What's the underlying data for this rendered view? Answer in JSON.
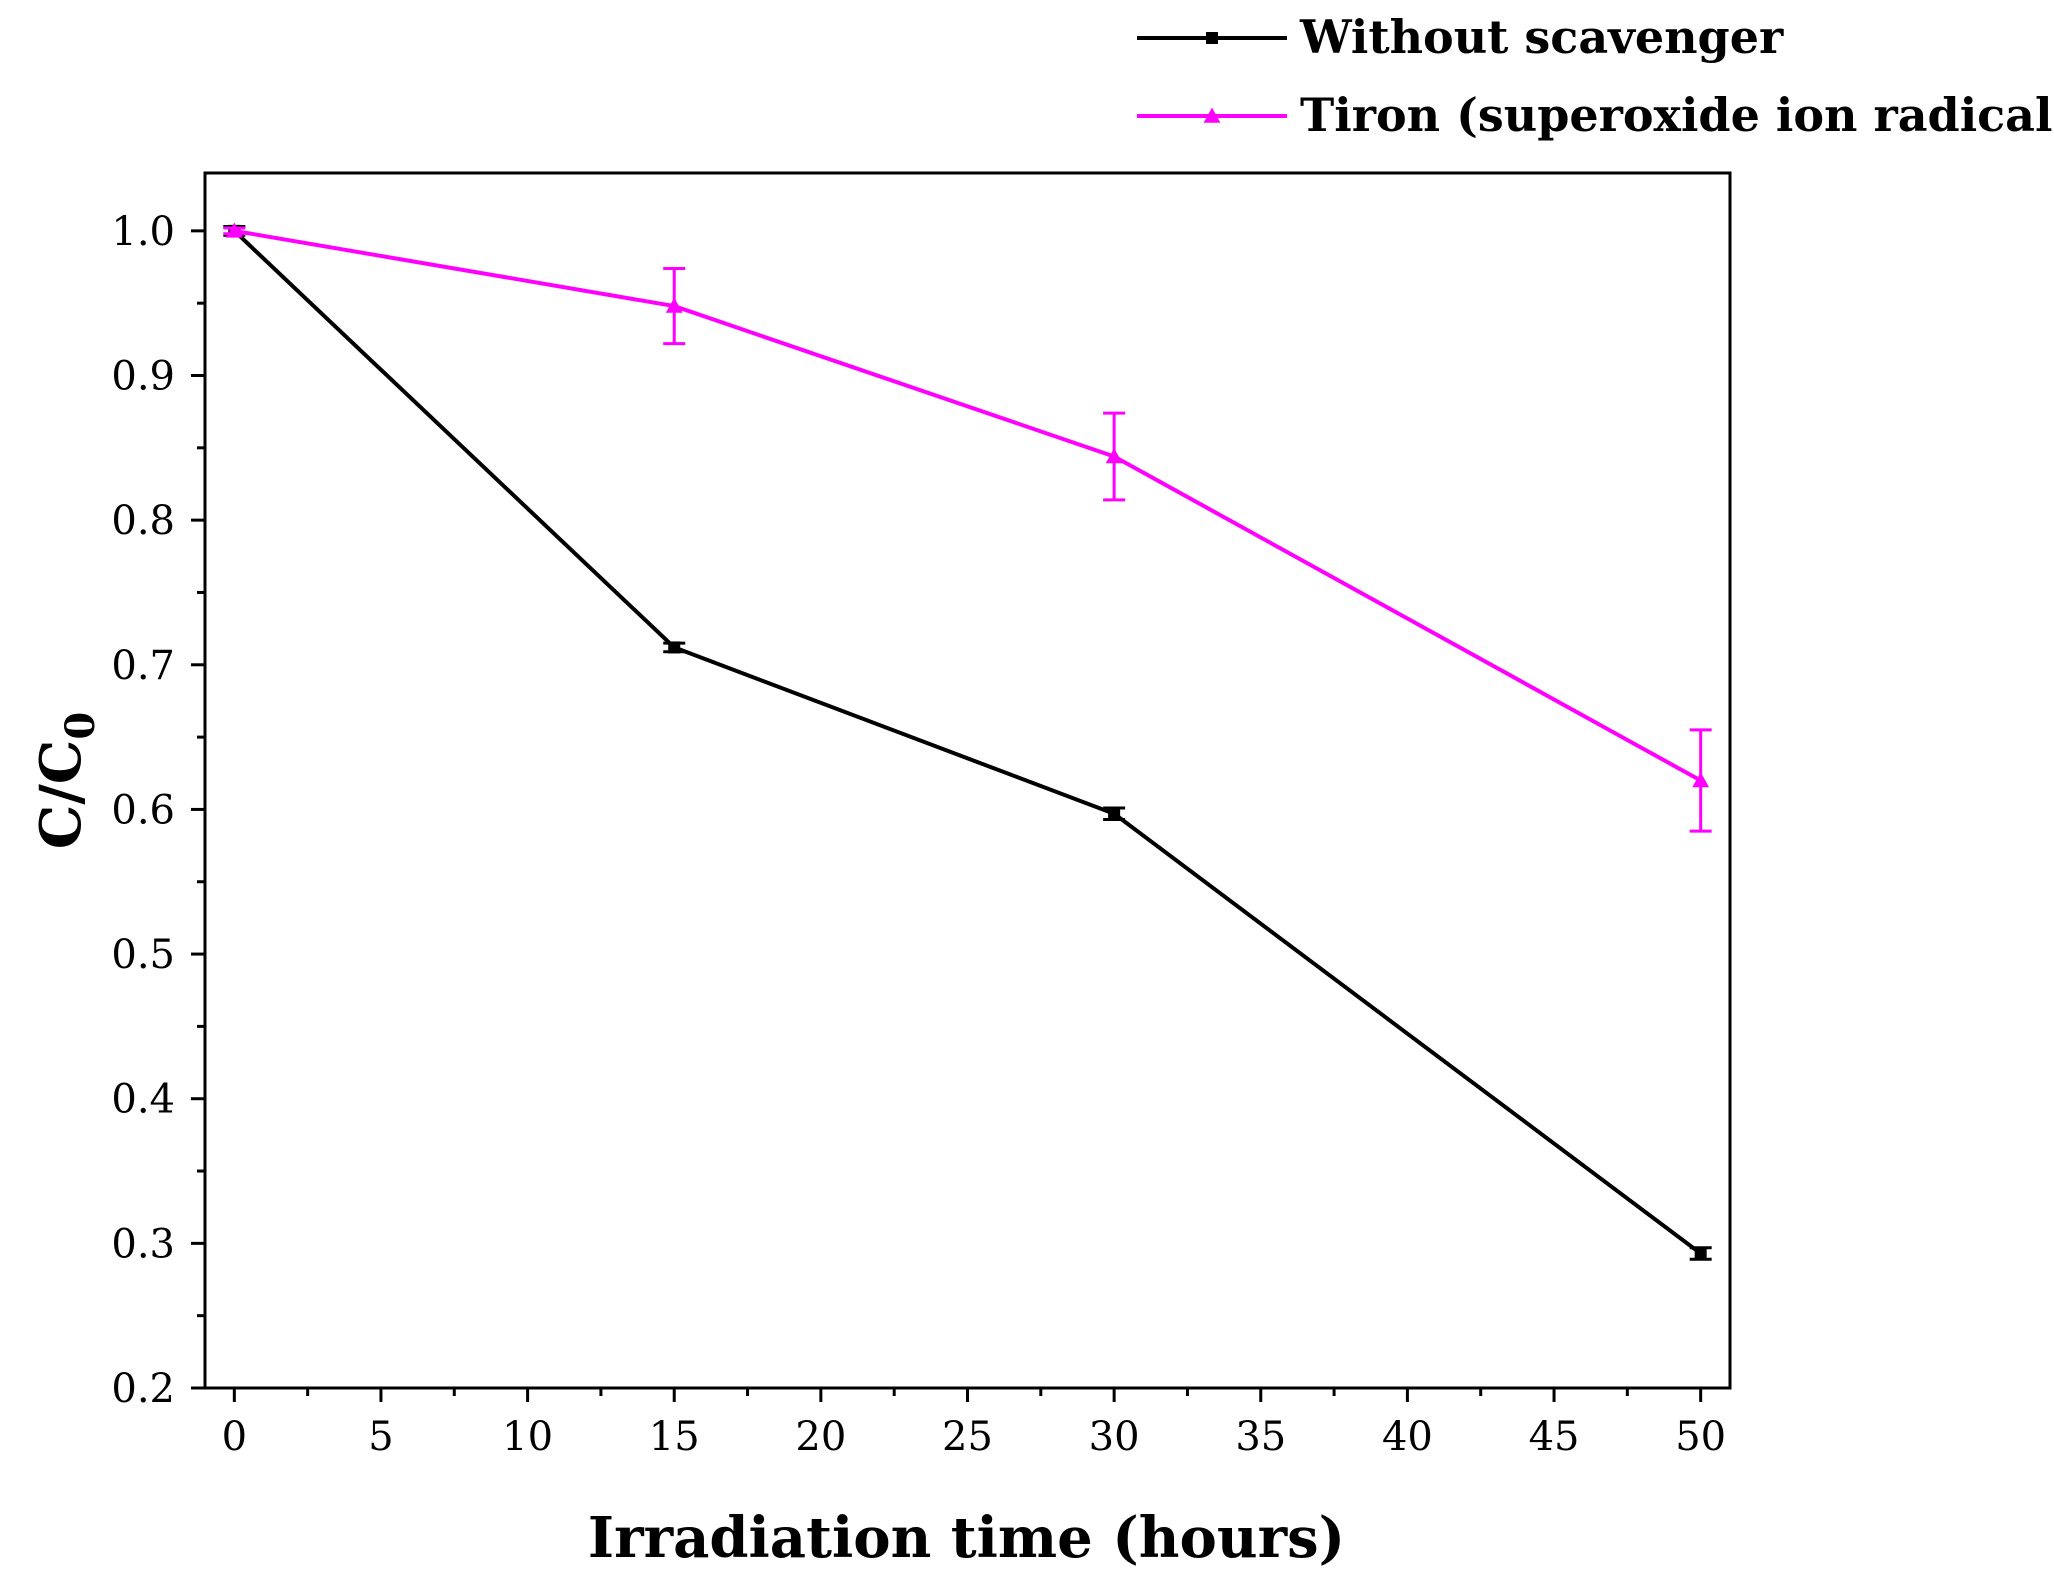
{
  "chart_data": {
    "type": "line",
    "xlabel": "Irradiation time (hours)",
    "ylabel_main": "C/C",
    "ylabel_sub": "0",
    "xlim": [
      -1,
      51
    ],
    "ylim": [
      0.2,
      1.04
    ],
    "x_ticks": [
      0,
      5,
      10,
      15,
      20,
      25,
      30,
      35,
      40,
      45,
      50
    ],
    "x_tick_labels": [
      "0",
      "5",
      "10",
      "15",
      "20",
      "25",
      "30",
      "35",
      "40",
      "45",
      "50"
    ],
    "y_ticks": [
      0.2,
      0.3,
      0.4,
      0.5,
      0.6,
      0.7,
      0.8,
      0.9,
      1.0
    ],
    "y_tick_labels": [
      "0.2",
      "0.3",
      "0.4",
      "0.5",
      "0.6",
      "0.7",
      "0.8",
      "0.9",
      "1.0"
    ],
    "grid": false,
    "legend_position": "top-right, above plot",
    "series": [
      {
        "name": "Without scavenger",
        "color": "#000000",
        "marker": "square",
        "x": [
          0,
          15,
          30,
          50
        ],
        "y": [
          1.0,
          0.712,
          0.597,
          0.293
        ],
        "error": [
          0.003,
          0.003,
          0.004,
          0.004
        ]
      },
      {
        "name": "Tiron (superoxide ion radical)",
        "color": "#ff00ff",
        "marker": "triangle",
        "x": [
          0,
          15,
          30,
          50
        ],
        "y": [
          1.0,
          0.948,
          0.844,
          0.62
        ],
        "error": [
          0.002,
          0.026,
          0.03,
          0.035
        ]
      }
    ]
  }
}
